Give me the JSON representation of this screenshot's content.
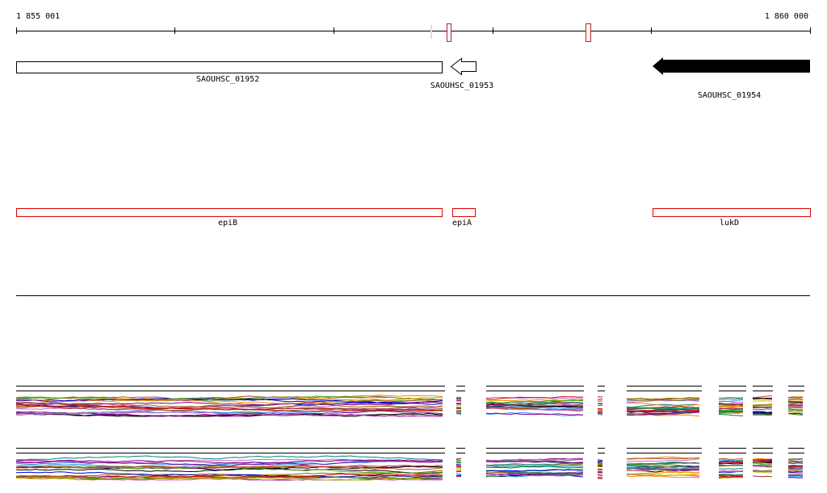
{
  "ruler": {
    "start_label": "1 855 001",
    "end_label": "1 860 000"
  },
  "genes": [
    {
      "label": "SAOUHSC_01952"
    },
    {
      "label": "SAOUHSC_01953"
    },
    {
      "label": "SAOUHSC_01954"
    }
  ],
  "features": [
    {
      "label": "epiB"
    },
    {
      "label": "epiA"
    },
    {
      "label": "lukD"
    }
  ]
}
